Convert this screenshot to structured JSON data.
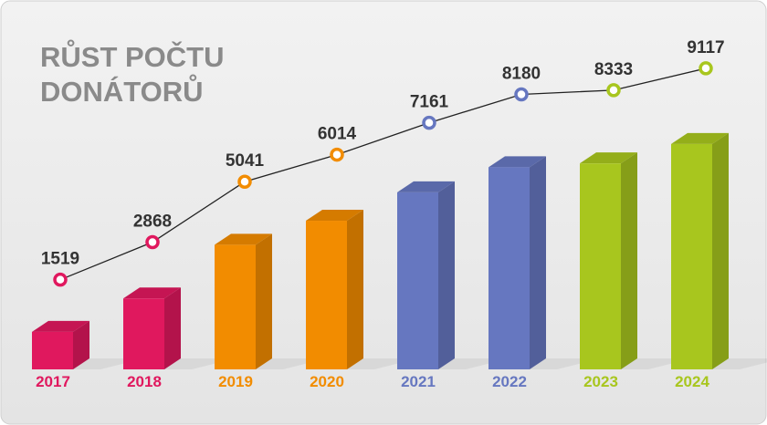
{
  "chart_data": {
    "type": "bar",
    "title": "RŮST POČTU DONÁTORŮ",
    "categories": [
      "2017",
      "2018",
      "2019",
      "2020",
      "2021",
      "2022",
      "2023",
      "2024"
    ],
    "values": [
      1519,
      2868,
      5041,
      6014,
      7161,
      8180,
      8333,
      9117
    ],
    "colors": [
      "#e0185e",
      "#e0185e",
      "#f28c00",
      "#f28c00",
      "#6677c0",
      "#6677c0",
      "#a8c61e",
      "#a8c61e"
    ],
    "line_color": "#222222"
  }
}
